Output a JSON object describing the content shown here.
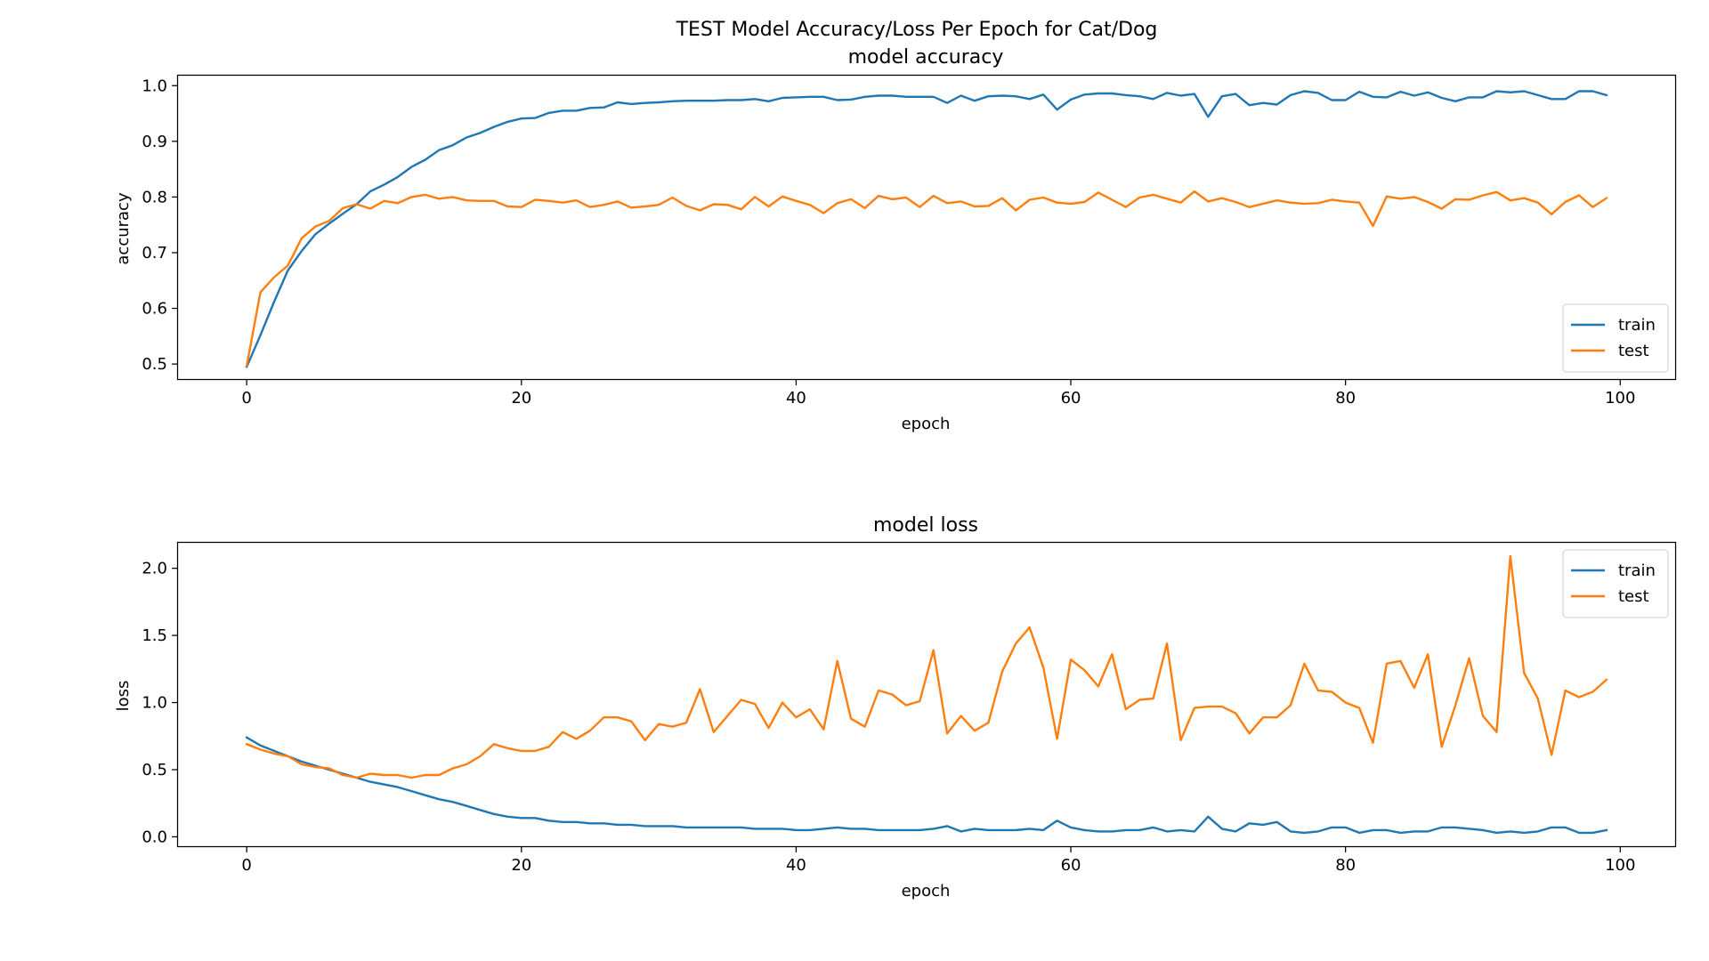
{
  "figure_title": "TEST Model Accuracy/Loss Per Epoch for Cat/Dog",
  "colors": {
    "train": "#1f77b4",
    "test": "#ff7f0e",
    "axis": "#000000",
    "legend_border": "#cccccc"
  },
  "chart_data": [
    {
      "type": "line",
      "title": "model accuracy",
      "xlabel": "epoch",
      "ylabel": "accuracy",
      "xlim": [
        -5,
        104
      ],
      "ylim": [
        0.473,
        1.018
      ],
      "xticks": [
        0,
        20,
        40,
        60,
        80,
        100
      ],
      "yticks": [
        0.5,
        0.6,
        0.7,
        0.8,
        0.9,
        1.0
      ],
      "ytick_decimals": 1,
      "grid": false,
      "legend_position": "lower-right",
      "series": [
        {
          "name": "train",
          "color": "#1f77b4",
          "values": [
            0.495,
            0.552,
            0.612,
            0.668,
            0.703,
            0.733,
            0.752,
            0.77,
            0.787,
            0.81,
            0.822,
            0.836,
            0.854,
            0.867,
            0.884,
            0.893,
            0.907,
            0.915,
            0.926,
            0.935,
            0.941,
            0.942,
            0.951,
            0.955,
            0.955,
            0.96,
            0.961,
            0.97,
            0.967,
            0.969,
            0.97,
            0.972,
            0.973,
            0.973,
            0.973,
            0.974,
            0.974,
            0.976,
            0.972,
            0.978,
            0.979,
            0.98,
            0.98,
            0.974,
            0.975,
            0.98,
            0.982,
            0.982,
            0.98,
            0.98,
            0.98,
            0.969,
            0.982,
            0.973,
            0.981,
            0.982,
            0.981,
            0.976,
            0.984,
            0.957,
            0.975,
            0.984,
            0.986,
            0.986,
            0.983,
            0.981,
            0.976,
            0.987,
            0.982,
            0.985,
            0.944,
            0.981,
            0.985,
            0.965,
            0.969,
            0.966,
            0.983,
            0.99,
            0.987,
            0.974,
            0.974,
            0.989,
            0.98,
            0.979,
            0.989,
            0.982,
            0.988,
            0.978,
            0.972,
            0.979,
            0.979,
            0.99,
            0.988,
            0.99,
            0.983,
            0.976,
            0.976,
            0.99,
            0.99,
            0.983
          ]
        },
        {
          "name": "test",
          "color": "#ff7f0e",
          "values": [
            0.497,
            0.629,
            0.656,
            0.677,
            0.726,
            0.747,
            0.757,
            0.78,
            0.787,
            0.779,
            0.793,
            0.789,
            0.8,
            0.804,
            0.797,
            0.8,
            0.794,
            0.793,
            0.793,
            0.783,
            0.782,
            0.795,
            0.793,
            0.79,
            0.794,
            0.782,
            0.786,
            0.792,
            0.781,
            0.783,
            0.786,
            0.799,
            0.784,
            0.776,
            0.787,
            0.786,
            0.778,
            0.8,
            0.783,
            0.801,
            0.793,
            0.786,
            0.771,
            0.789,
            0.796,
            0.78,
            0.802,
            0.796,
            0.799,
            0.782,
            0.802,
            0.789,
            0.792,
            0.783,
            0.784,
            0.798,
            0.776,
            0.795,
            0.799,
            0.79,
            0.788,
            0.791,
            0.808,
            0.795,
            0.782,
            0.799,
            0.804,
            0.797,
            0.79,
            0.81,
            0.792,
            0.798,
            0.791,
            0.782,
            0.788,
            0.794,
            0.79,
            0.788,
            0.789,
            0.795,
            0.792,
            0.79,
            0.748,
            0.801,
            0.797,
            0.8,
            0.791,
            0.779,
            0.796,
            0.795,
            0.803,
            0.809,
            0.794,
            0.798,
            0.79,
            0.769,
            0.791,
            0.803,
            0.782,
            0.798
          ]
        }
      ]
    },
    {
      "type": "line",
      "title": "model loss",
      "xlabel": "epoch",
      "ylabel": "loss",
      "xlim": [
        -5,
        104
      ],
      "ylim": [
        -0.07,
        2.19
      ],
      "xticks": [
        0,
        20,
        40,
        60,
        80,
        100
      ],
      "yticks": [
        0.0,
        0.5,
        1.0,
        1.5,
        2.0
      ],
      "ytick_decimals": 1,
      "grid": false,
      "legend_position": "upper-right",
      "series": [
        {
          "name": "train",
          "color": "#1f77b4",
          "values": [
            0.74,
            0.68,
            0.64,
            0.6,
            0.56,
            0.53,
            0.5,
            0.47,
            0.44,
            0.41,
            0.39,
            0.37,
            0.34,
            0.31,
            0.28,
            0.26,
            0.23,
            0.2,
            0.17,
            0.15,
            0.14,
            0.14,
            0.12,
            0.11,
            0.11,
            0.1,
            0.1,
            0.09,
            0.09,
            0.08,
            0.08,
            0.08,
            0.07,
            0.07,
            0.07,
            0.07,
            0.07,
            0.06,
            0.06,
            0.06,
            0.05,
            0.05,
            0.06,
            0.07,
            0.06,
            0.06,
            0.05,
            0.05,
            0.05,
            0.05,
            0.06,
            0.08,
            0.04,
            0.06,
            0.05,
            0.05,
            0.05,
            0.06,
            0.05,
            0.12,
            0.07,
            0.05,
            0.04,
            0.04,
            0.05,
            0.05,
            0.07,
            0.04,
            0.05,
            0.04,
            0.15,
            0.06,
            0.04,
            0.1,
            0.09,
            0.11,
            0.04,
            0.03,
            0.04,
            0.07,
            0.07,
            0.03,
            0.05,
            0.05,
            0.03,
            0.04,
            0.04,
            0.07,
            0.07,
            0.06,
            0.05,
            0.03,
            0.04,
            0.03,
            0.04,
            0.07,
            0.07,
            0.03,
            0.03,
            0.05
          ]
        },
        {
          "name": "test",
          "color": "#ff7f0e",
          "values": [
            0.69,
            0.65,
            0.62,
            0.6,
            0.54,
            0.52,
            0.51,
            0.46,
            0.44,
            0.47,
            0.46,
            0.46,
            0.44,
            0.46,
            0.46,
            0.51,
            0.54,
            0.6,
            0.69,
            0.66,
            0.64,
            0.64,
            0.67,
            0.78,
            0.73,
            0.79,
            0.89,
            0.89,
            0.86,
            0.72,
            0.84,
            0.82,
            0.85,
            1.1,
            0.78,
            0.9,
            1.02,
            0.99,
            0.81,
            1.0,
            0.89,
            0.95,
            0.8,
            1.31,
            0.88,
            0.82,
            1.09,
            1.06,
            0.98,
            1.01,
            1.39,
            0.77,
            0.9,
            0.79,
            0.85,
            1.23,
            1.44,
            1.56,
            1.26,
            0.73,
            1.32,
            1.24,
            1.12,
            1.36,
            0.95,
            1.02,
            1.03,
            1.44,
            0.72,
            0.96,
            0.97,
            0.97,
            0.92,
            0.77,
            0.89,
            0.89,
            0.98,
            1.29,
            1.09,
            1.08,
            1.0,
            0.96,
            0.7,
            1.29,
            1.31,
            1.11,
            1.36,
            0.67,
            0.98,
            1.33,
            0.9,
            0.78,
            2.09,
            1.22,
            1.03,
            0.61,
            1.09,
            1.04,
            1.08,
            1.17
          ]
        }
      ]
    }
  ]
}
